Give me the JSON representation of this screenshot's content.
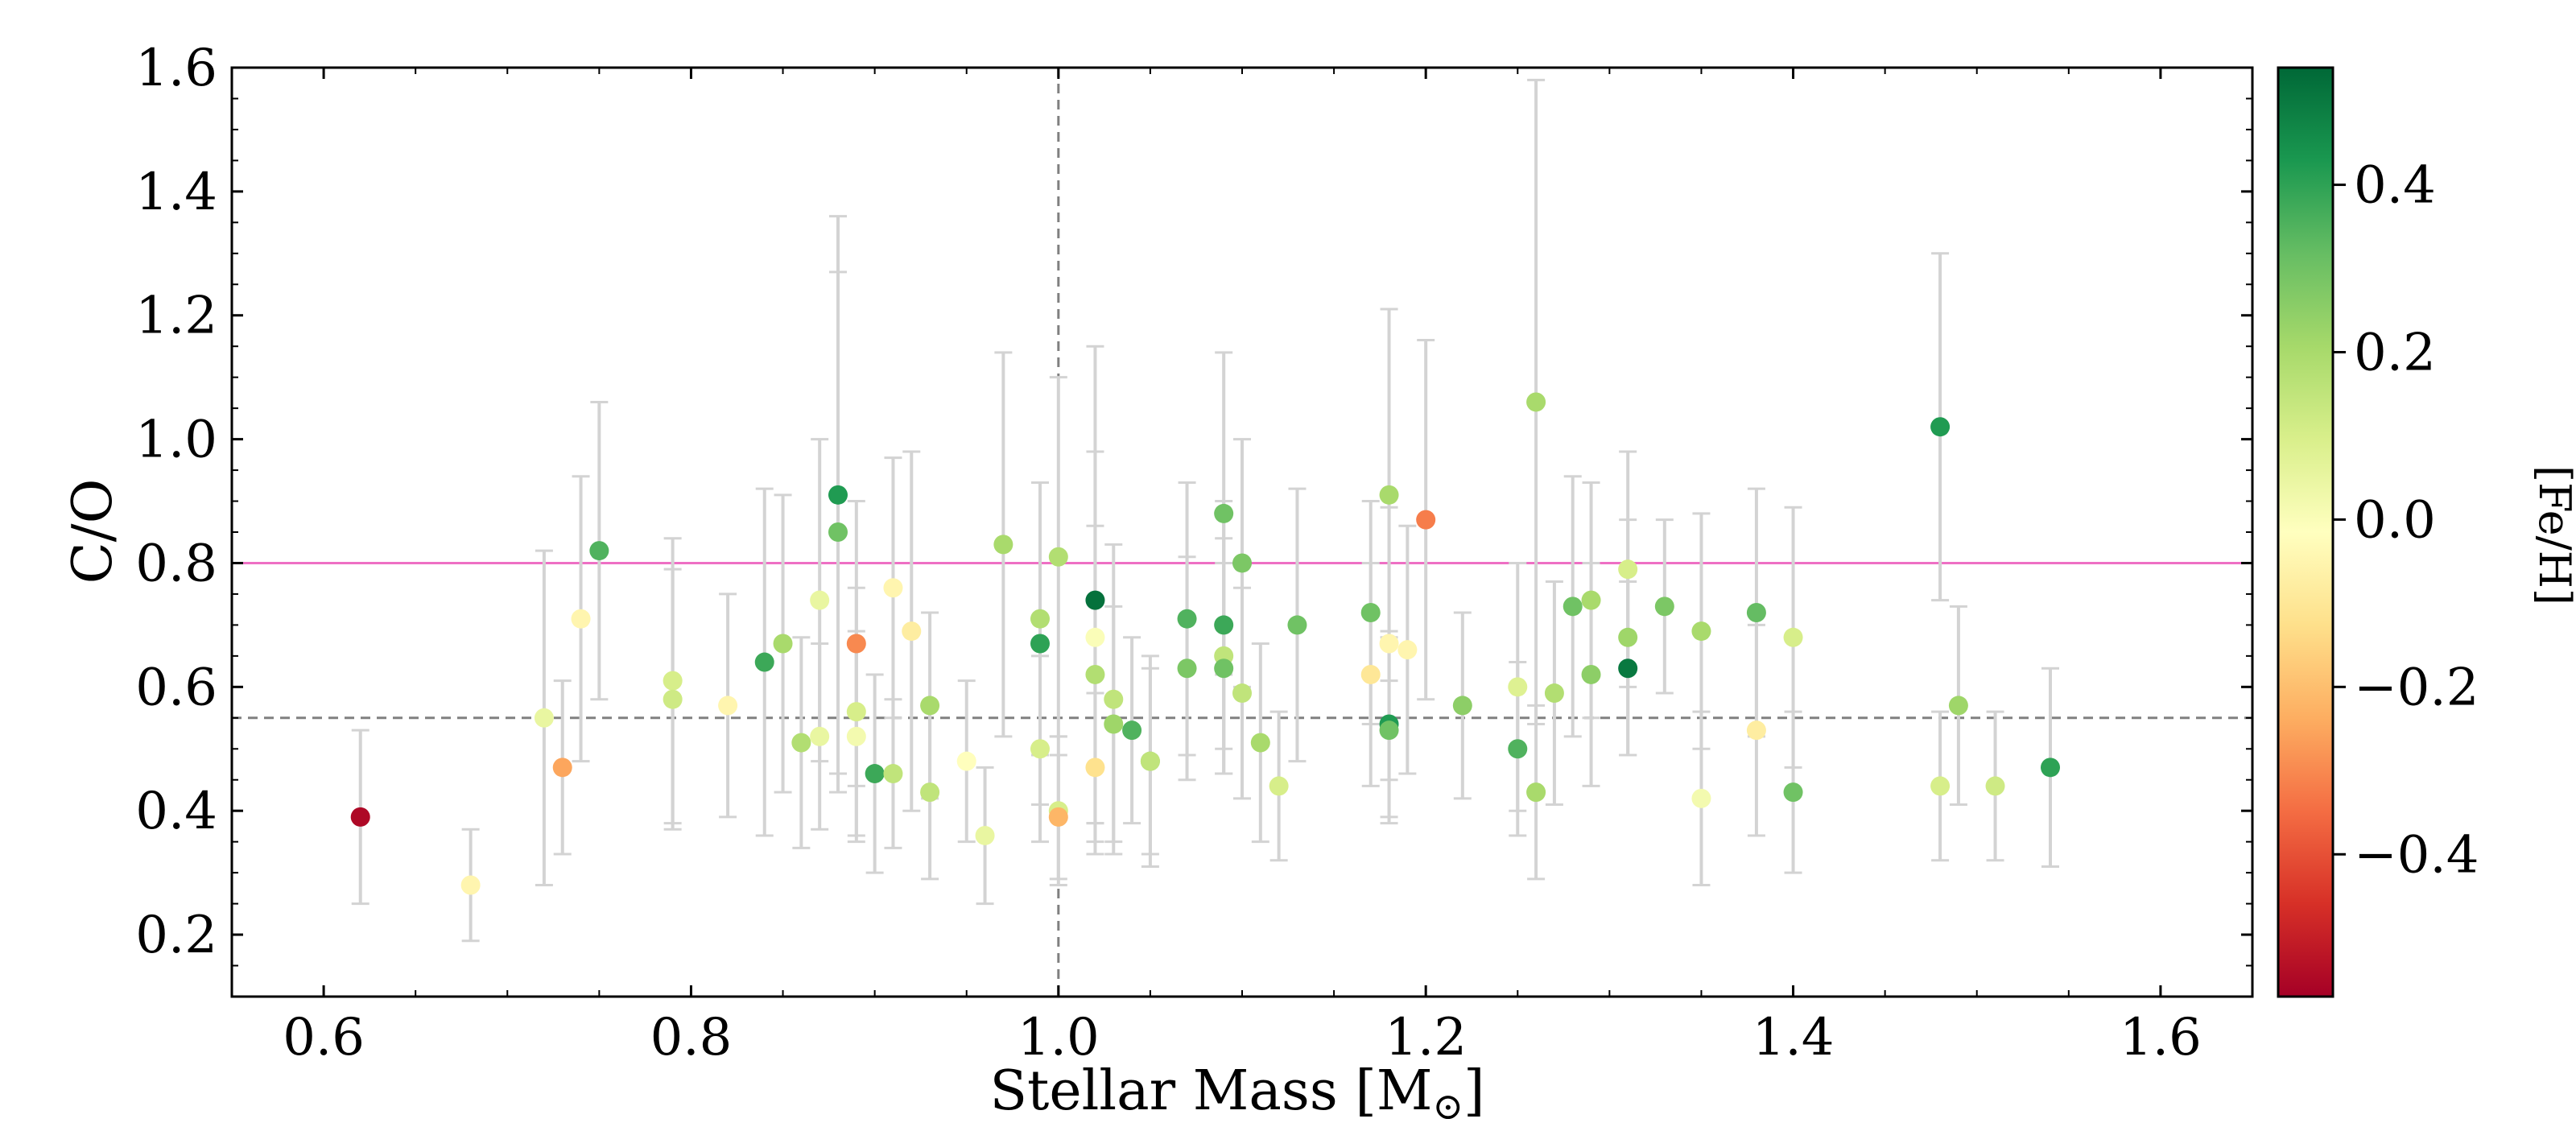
{
  "chart_data": {
    "type": "scatter",
    "xlabel": "Stellar Mass [M",
    "xlabel_sub": "⊙",
    "xlabel_close": "]",
    "ylabel": "C/O",
    "colorbar_label": "[Fe/H]",
    "xlim": [
      0.55,
      1.65
    ],
    "ylim": [
      0.1,
      1.6
    ],
    "xticks": [
      0.6,
      0.8,
      1.0,
      1.2,
      1.4,
      1.6
    ],
    "xtick_labels": [
      "0.6",
      "0.8",
      "1.0",
      "1.2",
      "1.4",
      "1.6"
    ],
    "yticks": [
      0.2,
      0.4,
      0.6,
      0.8,
      1.0,
      1.2,
      1.4,
      1.6
    ],
    "ytick_labels": [
      "0.2",
      "0.4",
      "0.6",
      "0.8",
      "1.0",
      "1.2",
      "1.4",
      "1.6"
    ],
    "colorbar_range": [
      -0.57,
      0.54
    ],
    "colorbar_ticks": [
      -0.4,
      -0.2,
      0.0,
      0.2,
      0.4
    ],
    "colorbar_tick_labels": [
      "−0.4",
      "−0.2",
      "0.0",
      "0.2",
      "0.4"
    ],
    "colormap": "RdYlGn",
    "reference_lines": [
      {
        "orientation": "horizontal",
        "value": 0.8,
        "color": "#ee6fc4",
        "style": "solid"
      },
      {
        "orientation": "horizontal",
        "value": 0.55,
        "color": "#808080",
        "style": "dashed"
      },
      {
        "orientation": "vertical",
        "value": 1.0,
        "color": "#808080",
        "style": "dashed"
      }
    ],
    "points": [
      {
        "x": 0.62,
        "y": 0.39,
        "err": 0.14,
        "feh": -0.55
      },
      {
        "x": 0.68,
        "y": 0.28,
        "err": 0.09,
        "feh": -0.05
      },
      {
        "x": 0.72,
        "y": 0.55,
        "err": 0.27,
        "feh": 0.05
      },
      {
        "x": 0.73,
        "y": 0.47,
        "err": 0.14,
        "feh": -0.25
      },
      {
        "x": 0.74,
        "y": 0.71,
        "err": 0.23,
        "feh": -0.05
      },
      {
        "x": 0.75,
        "y": 0.82,
        "err": 0.24,
        "feh": 0.35
      },
      {
        "x": 0.79,
        "y": 0.61,
        "err": 0.23,
        "feh": 0.1
      },
      {
        "x": 0.79,
        "y": 0.58,
        "err": 0.21,
        "feh": 0.12
      },
      {
        "x": 0.82,
        "y": 0.57,
        "err": 0.18,
        "feh": -0.05
      },
      {
        "x": 0.84,
        "y": 0.64,
        "err": 0.28,
        "feh": 0.38
      },
      {
        "x": 0.85,
        "y": 0.67,
        "err": 0.24,
        "feh": 0.2
      },
      {
        "x": 0.86,
        "y": 0.51,
        "err": 0.17,
        "feh": 0.18
      },
      {
        "x": 0.87,
        "y": 0.74,
        "err": 0.26,
        "feh": 0.05
      },
      {
        "x": 0.87,
        "y": 0.52,
        "err": 0.15,
        "feh": 0.05
      },
      {
        "x": 0.88,
        "y": 0.91,
        "err": 0.45,
        "feh": 0.42
      },
      {
        "x": 0.88,
        "y": 0.85,
        "err": 0.42,
        "feh": 0.3
      },
      {
        "x": 0.89,
        "y": 0.67,
        "err": 0.23,
        "feh": -0.3
      },
      {
        "x": 0.89,
        "y": 0.56,
        "err": 0.2,
        "feh": 0.1
      },
      {
        "x": 0.89,
        "y": 0.52,
        "err": 0.17,
        "feh": 0.02
      },
      {
        "x": 0.9,
        "y": 0.46,
        "err": 0.16,
        "feh": 0.38
      },
      {
        "x": 0.91,
        "y": 0.76,
        "err": 0.21,
        "feh": -0.05
      },
      {
        "x": 0.91,
        "y": 0.46,
        "err": 0.12,
        "feh": 0.15
      },
      {
        "x": 0.92,
        "y": 0.69,
        "err": 0.29,
        "feh": -0.08
      },
      {
        "x": 0.93,
        "y": 0.57,
        "err": 0.15,
        "feh": 0.2
      },
      {
        "x": 0.93,
        "y": 0.43,
        "err": 0.14,
        "feh": 0.15
      },
      {
        "x": 0.95,
        "y": 0.48,
        "err": 0.13,
        "feh": -0.02
      },
      {
        "x": 0.96,
        "y": 0.36,
        "err": 0.11,
        "feh": 0.05
      },
      {
        "x": 0.97,
        "y": 0.83,
        "err": 0.31,
        "feh": 0.2
      },
      {
        "x": 0.99,
        "y": 0.71,
        "err": 0.22,
        "feh": 0.18
      },
      {
        "x": 0.99,
        "y": 0.67,
        "err": 0.26,
        "feh": 0.4
      },
      {
        "x": 0.99,
        "y": 0.5,
        "err": 0.15,
        "feh": 0.1
      },
      {
        "x": 1.0,
        "y": 0.81,
        "err": 0.29,
        "feh": 0.18
      },
      {
        "x": 1.0,
        "y": 0.4,
        "err": 0.12,
        "feh": 0.1
      },
      {
        "x": 1.0,
        "y": 0.39,
        "err": 0.1,
        "feh": -0.22
      },
      {
        "x": 1.02,
        "y": 0.74,
        "err": 0.41,
        "feh": 0.52
      },
      {
        "x": 1.02,
        "y": 0.68,
        "err": 0.3,
        "feh": 0.0
      },
      {
        "x": 1.02,
        "y": 0.62,
        "err": 0.24,
        "feh": 0.18
      },
      {
        "x": 1.02,
        "y": 0.47,
        "err": 0.12,
        "feh": -0.12
      },
      {
        "x": 1.03,
        "y": 0.58,
        "err": 0.25,
        "feh": 0.15
      },
      {
        "x": 1.03,
        "y": 0.54,
        "err": 0.19,
        "feh": 0.22
      },
      {
        "x": 1.04,
        "y": 0.53,
        "err": 0.15,
        "feh": 0.35
      },
      {
        "x": 1.05,
        "y": 0.48,
        "err": 0.17,
        "feh": 0.25
      },
      {
        "x": 1.05,
        "y": 0.48,
        "err": 0.15,
        "feh": 0.15
      },
      {
        "x": 1.07,
        "y": 0.71,
        "err": 0.22,
        "feh": 0.35
      },
      {
        "x": 1.07,
        "y": 0.63,
        "err": 0.18,
        "feh": 0.28
      },
      {
        "x": 1.09,
        "y": 0.88,
        "err": 0.26,
        "feh": 0.3
      },
      {
        "x": 1.09,
        "y": 0.7,
        "err": 0.2,
        "feh": 0.38
      },
      {
        "x": 1.09,
        "y": 0.65,
        "err": 0.19,
        "feh": 0.15
      },
      {
        "x": 1.09,
        "y": 0.63,
        "err": 0.17,
        "feh": 0.3
      },
      {
        "x": 1.1,
        "y": 0.8,
        "err": 0.2,
        "feh": 0.28
      },
      {
        "x": 1.1,
        "y": 0.59,
        "err": 0.17,
        "feh": 0.15
      },
      {
        "x": 1.11,
        "y": 0.51,
        "err": 0.16,
        "feh": 0.2
      },
      {
        "x": 1.12,
        "y": 0.44,
        "err": 0.12,
        "feh": 0.1
      },
      {
        "x": 1.13,
        "y": 0.7,
        "err": 0.22,
        "feh": 0.3
      },
      {
        "x": 1.17,
        "y": 0.72,
        "err": 0.18,
        "feh": 0.3
      },
      {
        "x": 1.17,
        "y": 0.62,
        "err": 0.18,
        "feh": -0.1
      },
      {
        "x": 1.18,
        "y": 0.91,
        "err": 0.3,
        "feh": 0.2
      },
      {
        "x": 1.18,
        "y": 0.67,
        "err": 0.22,
        "feh": -0.05
      },
      {
        "x": 1.18,
        "y": 0.54,
        "err": 0.15,
        "feh": 0.42
      },
      {
        "x": 1.18,
        "y": 0.53,
        "err": 0.15,
        "feh": 0.3
      },
      {
        "x": 1.19,
        "y": 0.66,
        "err": 0.2,
        "feh": -0.05
      },
      {
        "x": 1.2,
        "y": 0.87,
        "err": 0.29,
        "feh": -0.32
      },
      {
        "x": 1.22,
        "y": 0.57,
        "err": 0.15,
        "feh": 0.25
      },
      {
        "x": 1.25,
        "y": 0.6,
        "err": 0.2,
        "feh": 0.08
      },
      {
        "x": 1.25,
        "y": 0.5,
        "err": 0.14,
        "feh": 0.35
      },
      {
        "x": 1.26,
        "y": 1.06,
        "err": 0.52,
        "feh": 0.2
      },
      {
        "x": 1.26,
        "y": 0.43,
        "err": 0.14,
        "feh": 0.2
      },
      {
        "x": 1.27,
        "y": 0.59,
        "err": 0.18,
        "feh": 0.18
      },
      {
        "x": 1.28,
        "y": 0.73,
        "err": 0.21,
        "feh": 0.3
      },
      {
        "x": 1.29,
        "y": 0.74,
        "err": 0.19,
        "feh": 0.2
      },
      {
        "x": 1.29,
        "y": 0.62,
        "err": 0.18,
        "feh": 0.25
      },
      {
        "x": 1.31,
        "y": 0.79,
        "err": 0.19,
        "feh": 0.1
      },
      {
        "x": 1.31,
        "y": 0.68,
        "err": 0.19,
        "feh": 0.22
      },
      {
        "x": 1.31,
        "y": 0.63,
        "err": 0.14,
        "feh": 0.5
      },
      {
        "x": 1.33,
        "y": 0.73,
        "err": 0.14,
        "feh": 0.28
      },
      {
        "x": 1.35,
        "y": 0.69,
        "err": 0.19,
        "feh": 0.2
      },
      {
        "x": 1.35,
        "y": 0.42,
        "err": 0.14,
        "feh": 0.02
      },
      {
        "x": 1.38,
        "y": 0.72,
        "err": 0.2,
        "feh": 0.32
      },
      {
        "x": 1.38,
        "y": 0.53,
        "err": 0.17,
        "feh": -0.08
      },
      {
        "x": 1.4,
        "y": 0.68,
        "err": 0.21,
        "feh": 0.1
      },
      {
        "x": 1.4,
        "y": 0.43,
        "err": 0.13,
        "feh": 0.3
      },
      {
        "x": 1.48,
        "y": 1.02,
        "err": 0.28,
        "feh": 0.42
      },
      {
        "x": 1.48,
        "y": 0.44,
        "err": 0.12,
        "feh": 0.1
      },
      {
        "x": 1.49,
        "y": 0.57,
        "err": 0.16,
        "feh": 0.22
      },
      {
        "x": 1.51,
        "y": 0.44,
        "err": 0.12,
        "feh": 0.12
      },
      {
        "x": 1.54,
        "y": 0.47,
        "err": 0.16,
        "feh": 0.4
      }
    ]
  }
}
